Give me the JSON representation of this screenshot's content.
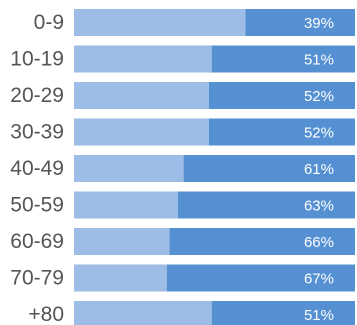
{
  "chart_data": {
    "type": "bar",
    "stacked": true,
    "orientation": "horizontal",
    "categories": [
      "0-9",
      "10-19",
      "20-29",
      "30-39",
      "40-49",
      "50-59",
      "60-69",
      "70-79",
      "+80"
    ],
    "values": [
      39,
      51,
      52,
      52,
      61,
      63,
      66,
      67,
      51
    ],
    "value_labels": [
      "39%",
      "51%",
      "52%",
      "52%",
      "61%",
      "63%",
      "66%",
      "67%",
      "51%"
    ],
    "unit": "%",
    "xlim": [
      0,
      100
    ],
    "legend": "none",
    "grid": false,
    "colors": {
      "value_segment": "#5591d2",
      "remainder_segment": "#9ebde6",
      "category_text": "#555555",
      "value_text": "#ffffff"
    }
  }
}
